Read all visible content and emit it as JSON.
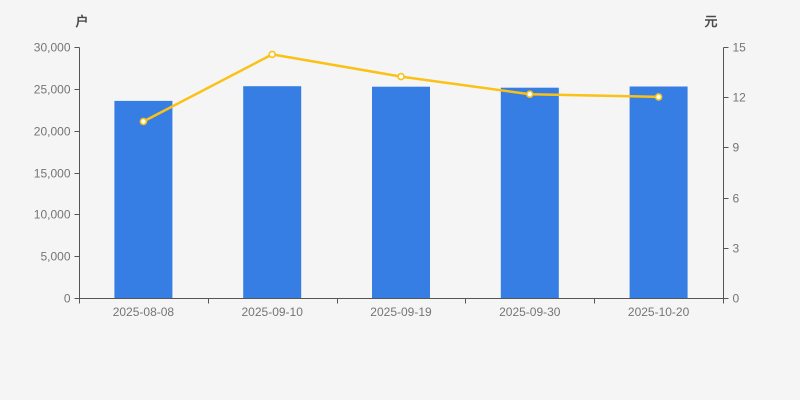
{
  "chart_data": {
    "type": "combo",
    "subtypes": [
      "bar",
      "line"
    ],
    "categories": [
      "2025-08-08",
      "2025-09-10",
      "2025-09-19",
      "2025-09-30",
      "2025-10-20"
    ],
    "series": [
      {
        "key": "bars",
        "type": "bar",
        "axis": "left",
        "values": [
          23560,
          25310,
          25260,
          25140,
          25280
        ],
        "color": "#377EE4"
      },
      {
        "key": "line",
        "type": "line",
        "axis": "right",
        "values": [
          10.55,
          14.56,
          13.23,
          12.18,
          12.02
        ],
        "color": "#FAC116",
        "marker_fill": "#FFFFFF"
      }
    ],
    "left_axis": {
      "name": "户",
      "min": 0,
      "max": 30000,
      "step": 5000,
      "tick_labels": [
        "0",
        "5,000",
        "10,000",
        "15,000",
        "20,000",
        "25,000",
        "30,000"
      ]
    },
    "right_axis": {
      "name": "元",
      "min": 0,
      "max": 15,
      "step": 3,
      "tick_labels": [
        "0",
        "3",
        "6",
        "9",
        "12",
        "15"
      ]
    },
    "grid": false,
    "legend": false,
    "colors": {
      "background": "#F5F5F6",
      "axis_line": "#555555",
      "tick_text": "#757575",
      "axis_name_text": "#4A4A4A"
    }
  }
}
